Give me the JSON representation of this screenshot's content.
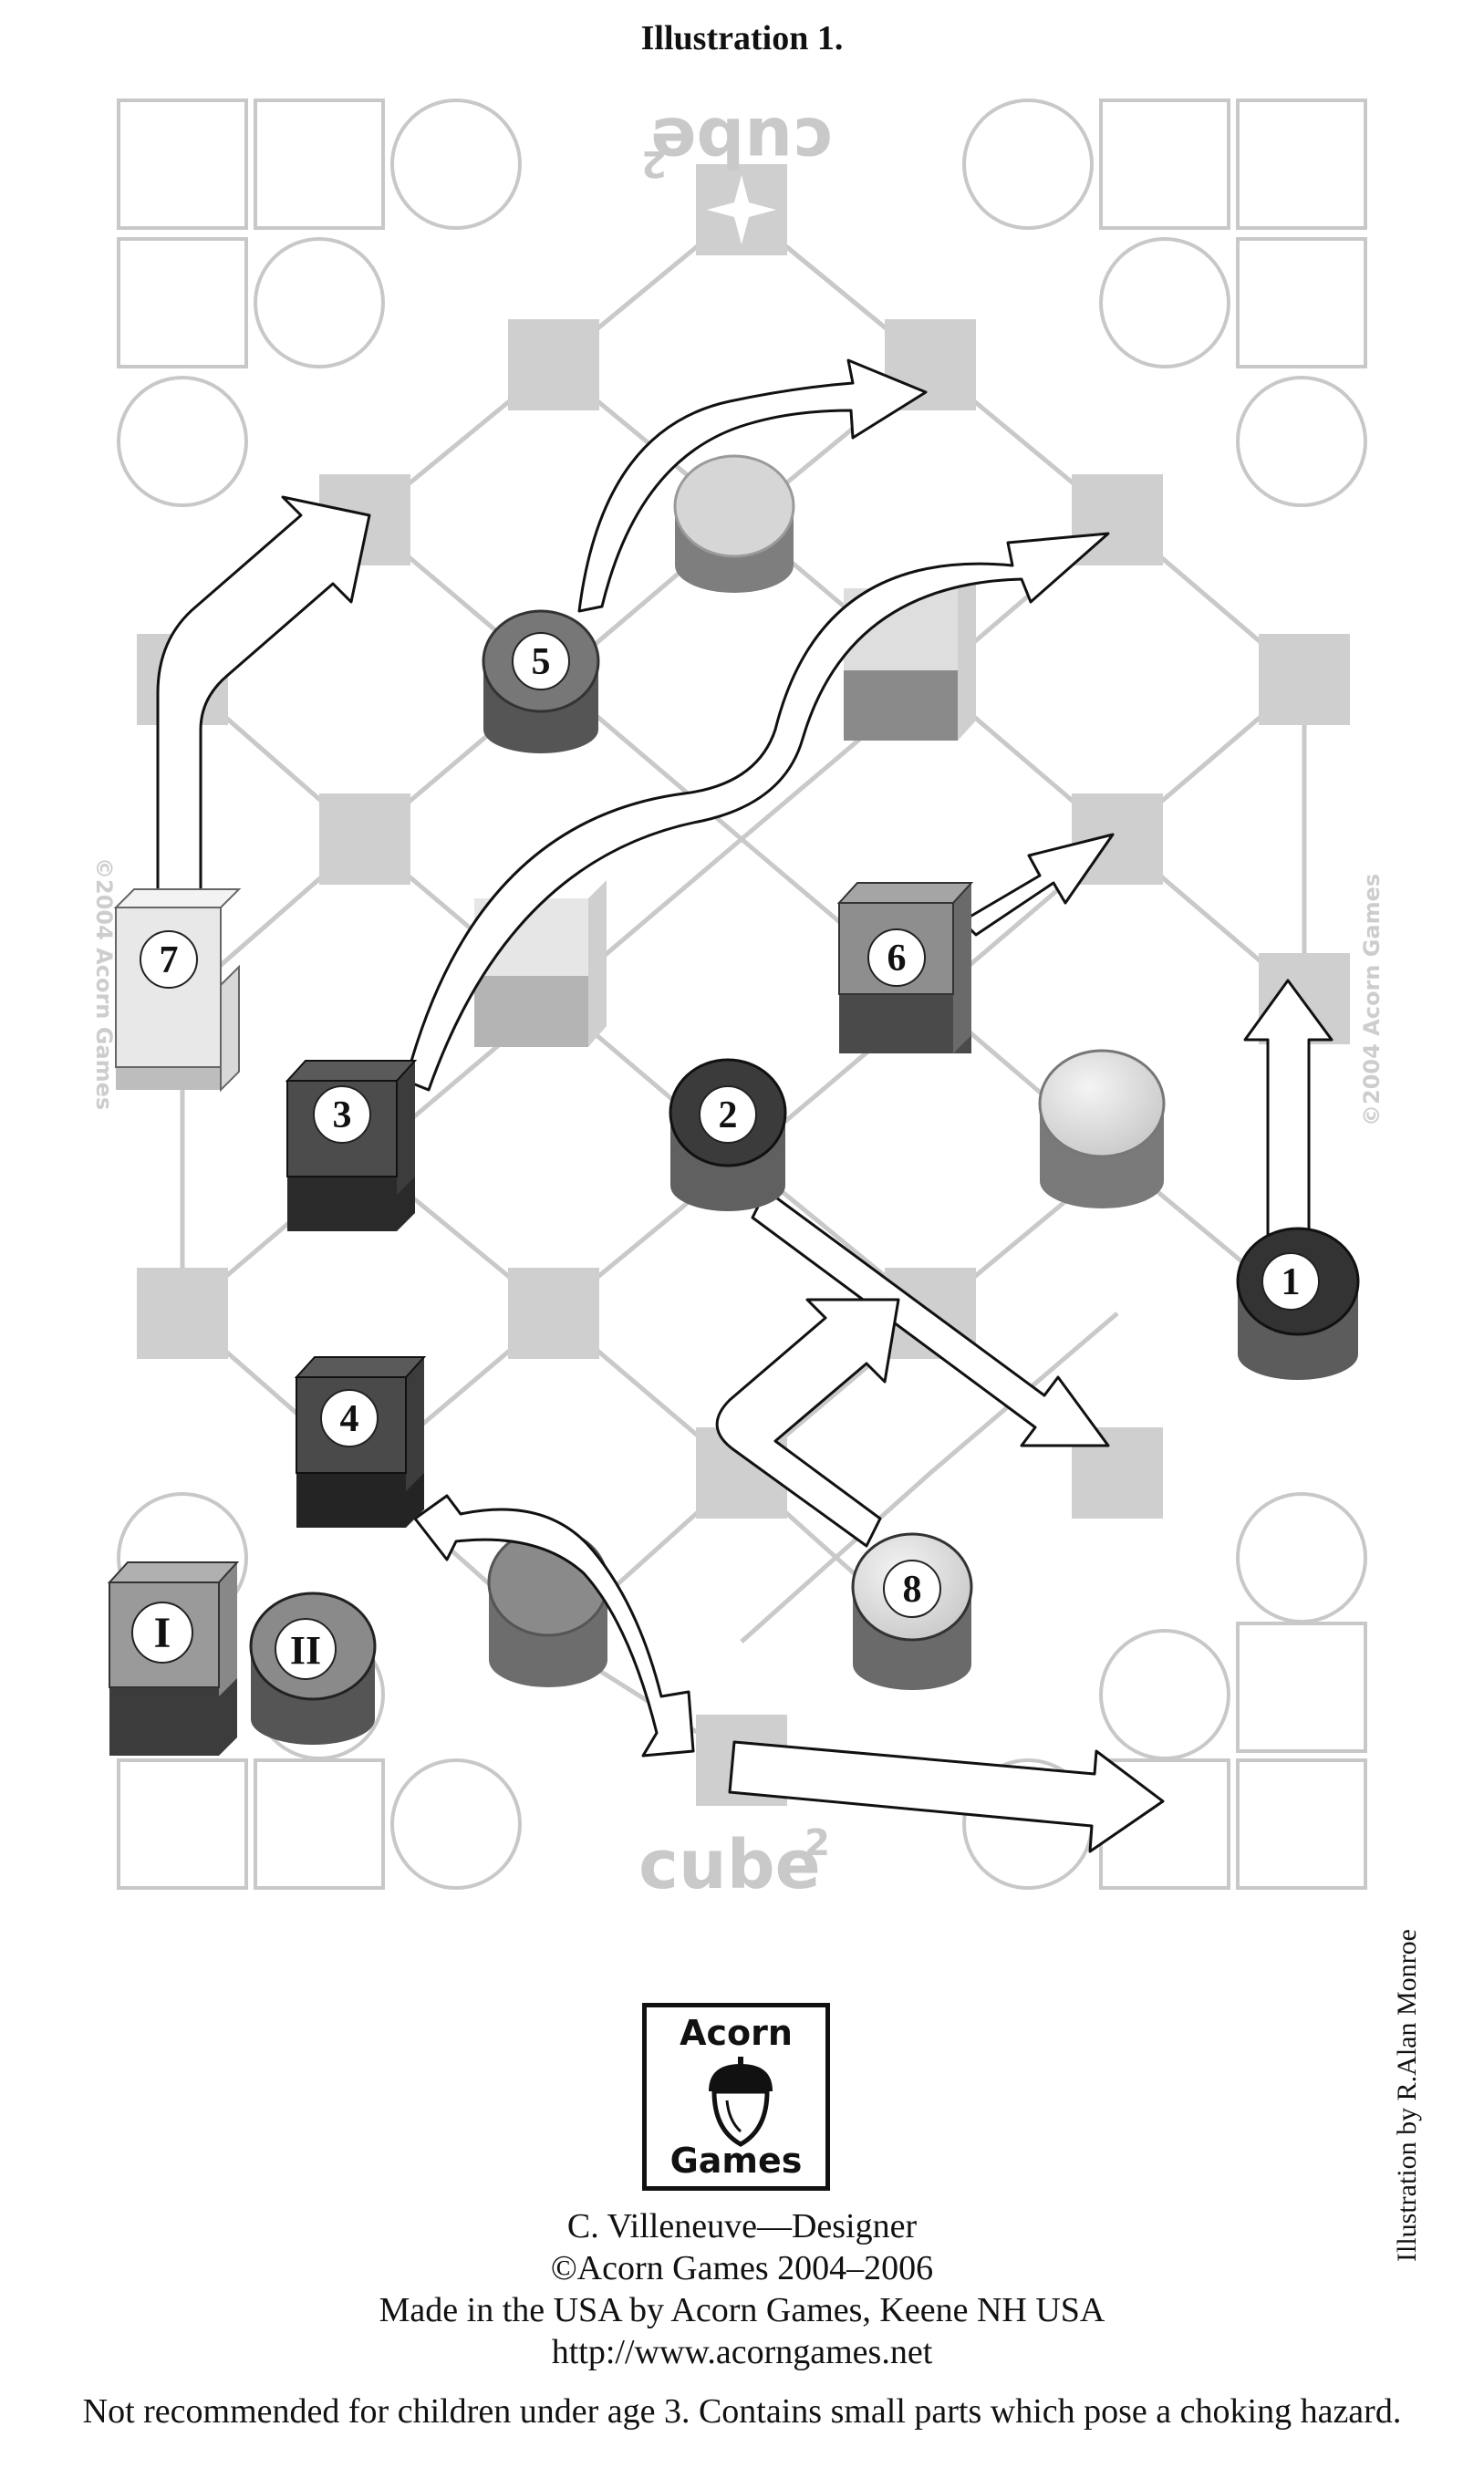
{
  "title": "Illustration 1.",
  "board": {
    "logo_top": "cube",
    "logo_bottom": "cube",
    "logo_superscript": "2",
    "watermark_left": "©2004 Acorn Games",
    "watermark_right": "©2004 Acorn Games",
    "compass_icon": "compass-star-icon",
    "pieces": [
      {
        "id": "piece-1",
        "label": "1",
        "shape": "cylinder",
        "tone": "dark"
      },
      {
        "id": "piece-2",
        "label": "2",
        "shape": "cylinder",
        "tone": "dark"
      },
      {
        "id": "piece-3",
        "label": "3",
        "shape": "cube",
        "tone": "dark"
      },
      {
        "id": "piece-4",
        "label": "4",
        "shape": "cube",
        "tone": "dark"
      },
      {
        "id": "piece-5",
        "label": "5",
        "shape": "cylinder",
        "tone": "medium"
      },
      {
        "id": "piece-6",
        "label": "6",
        "shape": "cube",
        "tone": "medium"
      },
      {
        "id": "piece-7",
        "label": "7",
        "shape": "cube",
        "tone": "light"
      },
      {
        "id": "piece-8",
        "label": "8",
        "shape": "cylinder",
        "tone": "light"
      },
      {
        "id": "piece-I",
        "label": "I",
        "shape": "cube",
        "tone": "medium"
      },
      {
        "id": "piece-II",
        "label": "II",
        "shape": "cylinder",
        "tone": "medium"
      }
    ]
  },
  "side_credit": "Illustration by R.Alan Monroe",
  "logo": {
    "line1": "Acorn",
    "line2": "Games",
    "icon": "acorn-icon"
  },
  "credits": {
    "designer": "C. Villeneuve—Designer",
    "copyright": "©Acorn Games 2004–2006",
    "made_in": "Made in the USA by Acorn Games, Keene NH USA",
    "url": "http://www.acorngames.net"
  },
  "warning": "Not recommended for children under age 3.  Contains small parts which pose a choking hazard."
}
